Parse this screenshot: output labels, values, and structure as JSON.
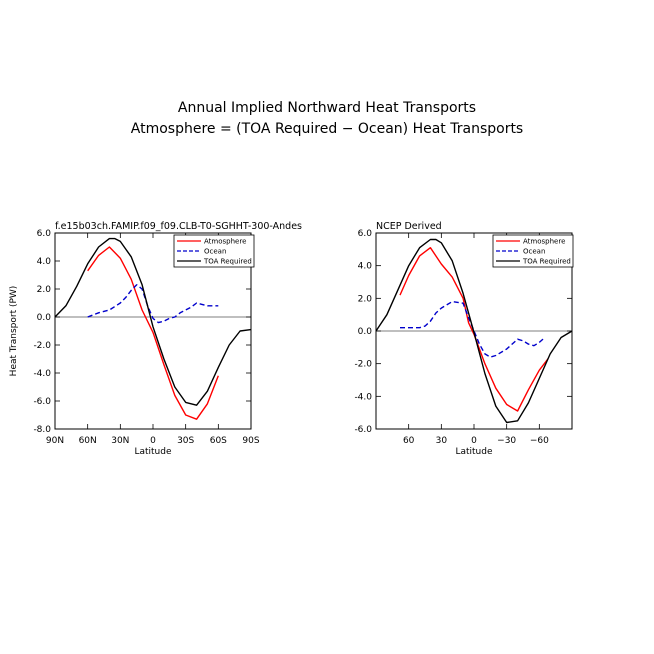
{
  "figure": {
    "title_line1": "Annual Implied Northward Heat Transports",
    "title_line2": "Atmosphere = (TOA Required − Ocean) Heat Transports"
  },
  "colors": {
    "atmosphere": "#ff0000",
    "ocean": "#0000cc",
    "toa": "#000000"
  },
  "chart_data": [
    {
      "type": "line",
      "title": "f.e15b03ch.FAMIP.f09_f09.CLB-T0-SGHHT-300-Andes",
      "xlabel": "Latitude",
      "ylabel": "Heat Transport (PW)",
      "xlim": [
        90,
        -90
      ],
      "ylim": [
        -8,
        6
      ],
      "x_ticks": [
        90,
        60,
        30,
        0,
        -30,
        -60,
        -90
      ],
      "x_tick_labels": [
        "90N",
        "60N",
        "30N",
        "0",
        "30S",
        "60S",
        "90S"
      ],
      "y_ticks": [
        6,
        4,
        2,
        0,
        -2,
        -4,
        -6,
        -8
      ],
      "y_tick_labels": [
        "6.0",
        "4.0",
        "2.0",
        "0.0",
        "-2.0",
        "-4.0",
        "-6.0",
        "-8.0"
      ],
      "legend": "top-right",
      "series": [
        {
          "name": "Atmosphere",
          "style": "solid",
          "color": "#ff0000",
          "x": [
            60,
            50,
            40,
            30,
            20,
            10,
            0,
            -10,
            -20,
            -30,
            -40,
            -50,
            -60
          ],
          "y": [
            3.3,
            4.4,
            5.0,
            4.2,
            2.7,
            0.5,
            -1.1,
            -3.4,
            -5.6,
            -7.0,
            -7.3,
            -6.2,
            -4.2
          ]
        },
        {
          "name": "Ocean",
          "style": "dashed",
          "color": "#0000cc",
          "x": [
            60,
            50,
            40,
            30,
            25,
            20,
            15,
            10,
            5,
            0,
            -5,
            -10,
            -15,
            -20,
            -25,
            -30,
            -35,
            -40,
            -45,
            -50,
            -55,
            -60
          ],
          "y": [
            0.0,
            0.3,
            0.5,
            1.0,
            1.4,
            1.9,
            2.3,
            2.0,
            0.8,
            -0.1,
            -0.4,
            -0.3,
            -0.1,
            0.0,
            0.3,
            0.5,
            0.7,
            1.0,
            0.9,
            0.8,
            0.8,
            0.8
          ]
        },
        {
          "name": "TOA Required",
          "style": "solid",
          "color": "#000000",
          "x": [
            90,
            80,
            70,
            60,
            50,
            40,
            35,
            30,
            20,
            10,
            0,
            -10,
            -20,
            -30,
            -40,
            -50,
            -60,
            -70,
            -80,
            -90
          ],
          "y": [
            0.0,
            0.8,
            2.2,
            3.8,
            5.0,
            5.6,
            5.6,
            5.4,
            4.3,
            2.3,
            -0.7,
            -3.0,
            -5.0,
            -6.1,
            -6.3,
            -5.3,
            -3.6,
            -2.0,
            -1.0,
            -0.9
          ]
        }
      ]
    },
    {
      "type": "line",
      "title": "NCEP Derived",
      "xlabel": "Latitude",
      "ylabel": "",
      "xlim": [
        90,
        -90
      ],
      "ylim": [
        -6,
        6
      ],
      "x_ticks": [
        60,
        30,
        0,
        -30,
        -60
      ],
      "x_tick_labels": [
        "60",
        "30",
        "0",
        "−30",
        "−60"
      ],
      "y_ticks": [
        6,
        4,
        2,
        0,
        -2,
        -4,
        -6
      ],
      "y_tick_labels": [
        "6.0",
        "4.0",
        "2.0",
        "0.0",
        "-2.0",
        "-4.0",
        "-6.0"
      ],
      "legend": "top-right",
      "series": [
        {
          "name": "Atmosphere",
          "style": "solid",
          "color": "#ff0000",
          "x": [
            68,
            60,
            50,
            40,
            30,
            20,
            10,
            5,
            0,
            -10,
            -20,
            -30,
            -40,
            -50,
            -60,
            -68
          ],
          "y": [
            2.2,
            3.4,
            4.6,
            5.1,
            4.1,
            3.3,
            2.0,
            0.5,
            -0.2,
            -2.0,
            -3.5,
            -4.5,
            -4.9,
            -3.6,
            -2.4,
            -1.7
          ]
        },
        {
          "name": "Ocean",
          "style": "dashed",
          "color": "#0000cc",
          "x": [
            68,
            60,
            50,
            45,
            40,
            35,
            30,
            20,
            10,
            5,
            0,
            -5,
            -10,
            -15,
            -20,
            -30,
            -35,
            -40,
            -45,
            -50,
            -55,
            -60,
            -65
          ],
          "y": [
            0.2,
            0.2,
            0.2,
            0.3,
            0.6,
            1.1,
            1.4,
            1.8,
            1.7,
            0.8,
            0.0,
            -0.8,
            -1.4,
            -1.6,
            -1.5,
            -1.1,
            -0.8,
            -0.5,
            -0.6,
            -0.8,
            -0.9,
            -0.7,
            -0.4
          ]
        },
        {
          "name": "TOA Required",
          "style": "solid",
          "color": "#000000",
          "x": [
            90,
            80,
            70,
            60,
            50,
            40,
            35,
            30,
            20,
            10,
            0,
            -10,
            -20,
            -30,
            -40,
            -50,
            -60,
            -70,
            -80,
            -90
          ],
          "y": [
            0.0,
            1.0,
            2.5,
            4.0,
            5.1,
            5.6,
            5.6,
            5.4,
            4.3,
            2.3,
            -0.1,
            -2.6,
            -4.6,
            -5.6,
            -5.5,
            -4.4,
            -2.9,
            -1.4,
            -0.4,
            0.0
          ]
        }
      ]
    }
  ]
}
